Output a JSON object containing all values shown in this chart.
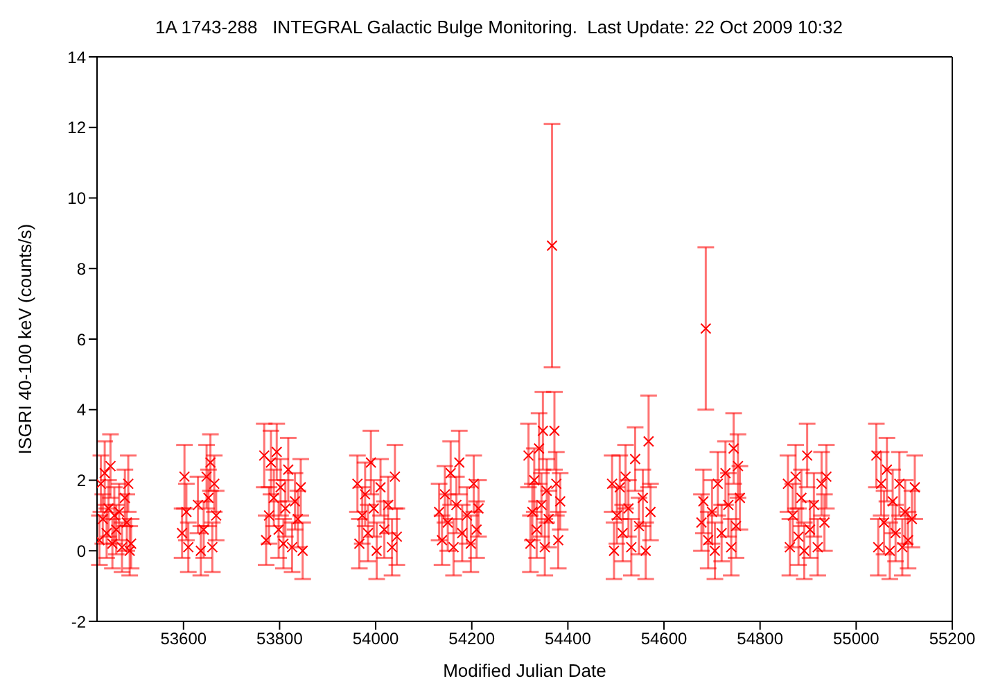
{
  "chart_data": {
    "type": "scatter",
    "title": "1A 1743-288   INTEGRAL Galactic Bulge Monitoring.  Last Update: 22 Oct 2009 10:32",
    "xlabel": "Modified Julian Date",
    "ylabel": "ISGRI 40-100 keV (counts/s)",
    "xlim": [
      53420,
      55200
    ],
    "xticks": [
      53600,
      53800,
      54000,
      54200,
      54400,
      54600,
      54800,
      55000,
      55200
    ],
    "ylim": [
      -2,
      14
    ],
    "yticks": [
      -2,
      0,
      2,
      4,
      6,
      8,
      10,
      12,
      14
    ],
    "marker": "cross",
    "series": [
      {
        "color": "#ff0000",
        "x": [
          53425,
          53428,
          53432,
          53436,
          53440,
          53444,
          53448,
          53452,
          53456,
          53460,
          53466,
          53472,
          53478,
          53482,
          53485,
          53488,
          53491,
          53597,
          53602,
          53606,
          53610,
          53630,
          53636,
          53642,
          53648,
          53652,
          53656,
          53660,
          53664,
          53668,
          53768,
          53772,
          53778,
          53782,
          53788,
          53794,
          53798,
          53802,
          53808,
          53812,
          53818,
          53826,
          53832,
          53838,
          53844,
          53848,
          53962,
          53966,
          53972,
          53978,
          53984,
          53990,
          53996,
          54002,
          54010,
          54018,
          54026,
          54034,
          54040,
          54044,
          54132,
          54138,
          54144,
          54150,
          54156,
          54162,
          54168,
          54174,
          54180,
          54190,
          54198,
          54204,
          54210,
          54214,
          54318,
          54322,
          54326,
          54330,
          54335,
          54340,
          54345,
          54348,
          54352,
          54356,
          54360,
          54367,
          54372,
          54376,
          54380,
          54384,
          54492,
          54496,
          54502,
          54508,
          54514,
          54520,
          54526,
          54532,
          54540,
          54548,
          54556,
          54562,
          54568,
          54572,
          54678,
          54682,
          54687,
          54692,
          54700,
          54706,
          54712,
          54720,
          54728,
          54734,
          54740,
          54745,
          54750,
          54754,
          54758,
          54858,
          54862,
          54868,
          54874,
          54880,
          54886,
          54892,
          54898,
          54904,
          54912,
          54920,
          54928,
          54934,
          54938,
          55042,
          55046,
          55052,
          55058,
          55064,
          55070,
          55076,
          55082,
          55090,
          55096,
          55102,
          55108,
          55116,
          55122
        ],
        "values": [
          0.3,
          1.9,
          0.9,
          2.2,
          0.5,
          1.2,
          2.4,
          0.2,
          1.0,
          0.6,
          1.1,
          0.1,
          1.5,
          0.8,
          1.9,
          0.0,
          0.2,
          0.5,
          2.1,
          1.1,
          0.1,
          1.3,
          0.0,
          0.6,
          2.1,
          1.5,
          2.5,
          0.1,
          1.9,
          1.0,
          2.7,
          0.3,
          1.0,
          2.5,
          1.5,
          2.8,
          0.6,
          1.8,
          0.2,
          1.2,
          2.3,
          0.1,
          1.4,
          0.9,
          1.8,
          0.0,
          1.9,
          0.2,
          1.0,
          1.6,
          0.5,
          2.5,
          1.2,
          0.0,
          1.8,
          0.6,
          1.3,
          0.1,
          2.1,
          0.4,
          1.1,
          0.3,
          1.6,
          0.8,
          2.2,
          0.1,
          1.3,
          2.5,
          0.5,
          1.0,
          0.2,
          1.9,
          0.6,
          1.2,
          2.7,
          0.2,
          1.1,
          2.0,
          0.6,
          2.9,
          1.3,
          3.4,
          0.1,
          1.7,
          0.9,
          8.65,
          3.4,
          1.9,
          0.3,
          1.4,
          1.9,
          0.0,
          1.0,
          1.8,
          0.5,
          2.1,
          1.2,
          0.1,
          2.6,
          0.7,
          1.5,
          0.0,
          3.1,
          1.1,
          0.8,
          1.4,
          6.3,
          0.3,
          1.1,
          0.0,
          1.9,
          0.5,
          2.2,
          1.3,
          0.1,
          2.9,
          0.7,
          2.4,
          1.5,
          1.9,
          0.1,
          1.0,
          2.1,
          0.4,
          1.5,
          0.0,
          2.7,
          0.6,
          1.3,
          0.1,
          1.9,
          0.8,
          2.1,
          2.7,
          0.1,
          1.9,
          0.8,
          2.3,
          0.0,
          1.4,
          0.5,
          1.9,
          0.1,
          1.1,
          0.3,
          0.9,
          1.8
        ],
        "errors": [
          0.7,
          0.8,
          0.7,
          0.9,
          0.7,
          0.8,
          0.9,
          0.7,
          0.8,
          0.7,
          0.8,
          0.7,
          0.8,
          0.8,
          0.8,
          0.7,
          0.7,
          0.7,
          0.9,
          0.8,
          0.7,
          0.8,
          0.7,
          0.8,
          0.9,
          0.8,
          0.8,
          0.7,
          0.8,
          0.7,
          0.9,
          0.7,
          0.8,
          0.9,
          0.8,
          0.8,
          0.8,
          0.8,
          0.7,
          0.8,
          0.9,
          0.7,
          0.8,
          0.8,
          0.8,
          0.8,
          0.8,
          0.7,
          0.8,
          0.9,
          0.8,
          0.9,
          0.8,
          0.8,
          0.8,
          0.8,
          0.8,
          0.8,
          0.9,
          0.8,
          0.8,
          0.7,
          0.8,
          0.8,
          0.9,
          0.8,
          0.8,
          0.9,
          0.8,
          0.8,
          0.8,
          0.8,
          0.8,
          0.8,
          0.9,
          0.8,
          0.8,
          0.9,
          0.8,
          1.0,
          0.9,
          1.1,
          0.8,
          0.9,
          0.8,
          3.45,
          1.1,
          0.9,
          0.8,
          0.8,
          0.8,
          0.8,
          0.8,
          0.9,
          0.8,
          0.9,
          0.8,
          0.8,
          0.9,
          0.8,
          0.8,
          0.8,
          1.3,
          0.8,
          0.8,
          0.9,
          2.3,
          0.8,
          0.9,
          0.8,
          0.9,
          0.8,
          0.9,
          0.9,
          0.8,
          1.0,
          0.9,
          0.9,
          0.9,
          0.8,
          0.8,
          0.9,
          0.9,
          0.8,
          0.8,
          0.8,
          0.9,
          0.8,
          0.9,
          0.8,
          0.9,
          0.8,
          0.9,
          0.9,
          0.8,
          0.9,
          0.9,
          0.9,
          0.8,
          0.9,
          0.8,
          0.9,
          0.8,
          0.9,
          0.8,
          0.8,
          0.9
        ]
      }
    ]
  }
}
